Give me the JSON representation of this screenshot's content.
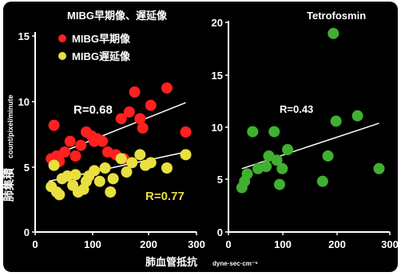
{
  "chart_data": [
    {
      "type": "scatter",
      "title": "MIBG早期像、遅延像",
      "ylabel": "肺集積",
      "ylabel_unit": "count/pixel/minute",
      "xlim": [
        0,
        300
      ],
      "ylim": [
        0,
        15
      ],
      "xticks": [
        "0",
        "100",
        "200",
        "300"
      ],
      "yticks": [
        "0",
        "5",
        "10",
        "15"
      ],
      "series": [
        {
          "name": "MIBG早期像",
          "color": "#ff2020",
          "r_text": "R=0.68",
          "r_color": "#ffffff",
          "fit": {
            "x1": 25,
            "y1": 5.6,
            "x2": 280,
            "y2": 9.7
          },
          "points": [
            {
              "x": 30,
              "y": 5.5
            },
            {
              "x": 35,
              "y": 8.0
            },
            {
              "x": 40,
              "y": 5.7
            },
            {
              "x": 45,
              "y": 5.3
            },
            {
              "x": 55,
              "y": 6.0
            },
            {
              "x": 65,
              "y": 6.8
            },
            {
              "x": 75,
              "y": 5.7
            },
            {
              "x": 85,
              "y": 6.5
            },
            {
              "x": 95,
              "y": 7.5
            },
            {
              "x": 105,
              "y": 7.2
            },
            {
              "x": 110,
              "y": 6.8
            },
            {
              "x": 115,
              "y": 7.0
            },
            {
              "x": 125,
              "y": 6.8
            },
            {
              "x": 135,
              "y": 6.0
            },
            {
              "x": 160,
              "y": 8.5
            },
            {
              "x": 175,
              "y": 9.0
            },
            {
              "x": 185,
              "y": 10.5
            },
            {
              "x": 195,
              "y": 8.5
            },
            {
              "x": 200,
              "y": 7.8
            },
            {
              "x": 215,
              "y": 9.5
            },
            {
              "x": 245,
              "y": 10.8
            },
            {
              "x": 280,
              "y": 7.5
            },
            {
              "x": 150,
              "y": 5.8
            },
            {
              "x": 165,
              "y": 5.5
            }
          ]
        },
        {
          "name": "MIBG遅延像",
          "color": "#e8e040",
          "r_text": "R=0.77",
          "r_color": "#e8e040",
          "fit": {
            "x1": 25,
            "y1": 3.8,
            "x2": 280,
            "y2": 6.0
          },
          "points": [
            {
              "x": 30,
              "y": 3.4
            },
            {
              "x": 35,
              "y": 5.0
            },
            {
              "x": 40,
              "y": 3.0
            },
            {
              "x": 45,
              "y": 2.8
            },
            {
              "x": 50,
              "y": 4.0
            },
            {
              "x": 60,
              "y": 4.2
            },
            {
              "x": 70,
              "y": 3.5
            },
            {
              "x": 75,
              "y": 4.3
            },
            {
              "x": 80,
              "y": 3.0
            },
            {
              "x": 90,
              "y": 3.2
            },
            {
              "x": 95,
              "y": 3.8
            },
            {
              "x": 100,
              "y": 4.2
            },
            {
              "x": 110,
              "y": 4.6
            },
            {
              "x": 120,
              "y": 3.8
            },
            {
              "x": 130,
              "y": 4.8
            },
            {
              "x": 140,
              "y": 3.0
            },
            {
              "x": 145,
              "y": 4.0
            },
            {
              "x": 160,
              "y": 5.5
            },
            {
              "x": 170,
              "y": 4.5
            },
            {
              "x": 180,
              "y": 5.2
            },
            {
              "x": 195,
              "y": 5.8
            },
            {
              "x": 205,
              "y": 5.0
            },
            {
              "x": 215,
              "y": 5.2
            },
            {
              "x": 245,
              "y": 4.8
            },
            {
              "x": 280,
              "y": 5.8
            }
          ]
        }
      ]
    },
    {
      "type": "scatter",
      "title": "Tetrofosmin",
      "xlim": [
        0,
        300
      ],
      "ylim": [
        0,
        20
      ],
      "xticks": [
        "0",
        "100",
        "200",
        "300"
      ],
      "yticks": [
        "0",
        "5",
        "10",
        "15",
        "20"
      ],
      "series": [
        {
          "color": "#40b030",
          "r_text": "R=0.43",
          "r_color": "#ffffff",
          "fit": {
            "x1": 25,
            "y1": 6.0,
            "x2": 280,
            "y2": 10.3
          },
          "points": [
            {
              "x": 25,
              "y": 4.2
            },
            {
              "x": 30,
              "y": 4.8
            },
            {
              "x": 35,
              "y": 5.5
            },
            {
              "x": 45,
              "y": 9.5
            },
            {
              "x": 55,
              "y": 6.0
            },
            {
              "x": 70,
              "y": 6.2
            },
            {
              "x": 75,
              "y": 7.2
            },
            {
              "x": 85,
              "y": 9.5
            },
            {
              "x": 90,
              "y": 6.8
            },
            {
              "x": 95,
              "y": 4.5
            },
            {
              "x": 100,
              "y": 6.0
            },
            {
              "x": 110,
              "y": 7.8
            },
            {
              "x": 175,
              "y": 4.8
            },
            {
              "x": 185,
              "y": 7.2
            },
            {
              "x": 195,
              "y": 18.8
            },
            {
              "x": 200,
              "y": 10.5
            },
            {
              "x": 240,
              "y": 11.0
            },
            {
              "x": 280,
              "y": 6.0
            }
          ]
        }
      ]
    }
  ],
  "xlabel": "肺血管抵抗",
  "xlabel_unit": "dyne·sec·cm⁻⁵"
}
